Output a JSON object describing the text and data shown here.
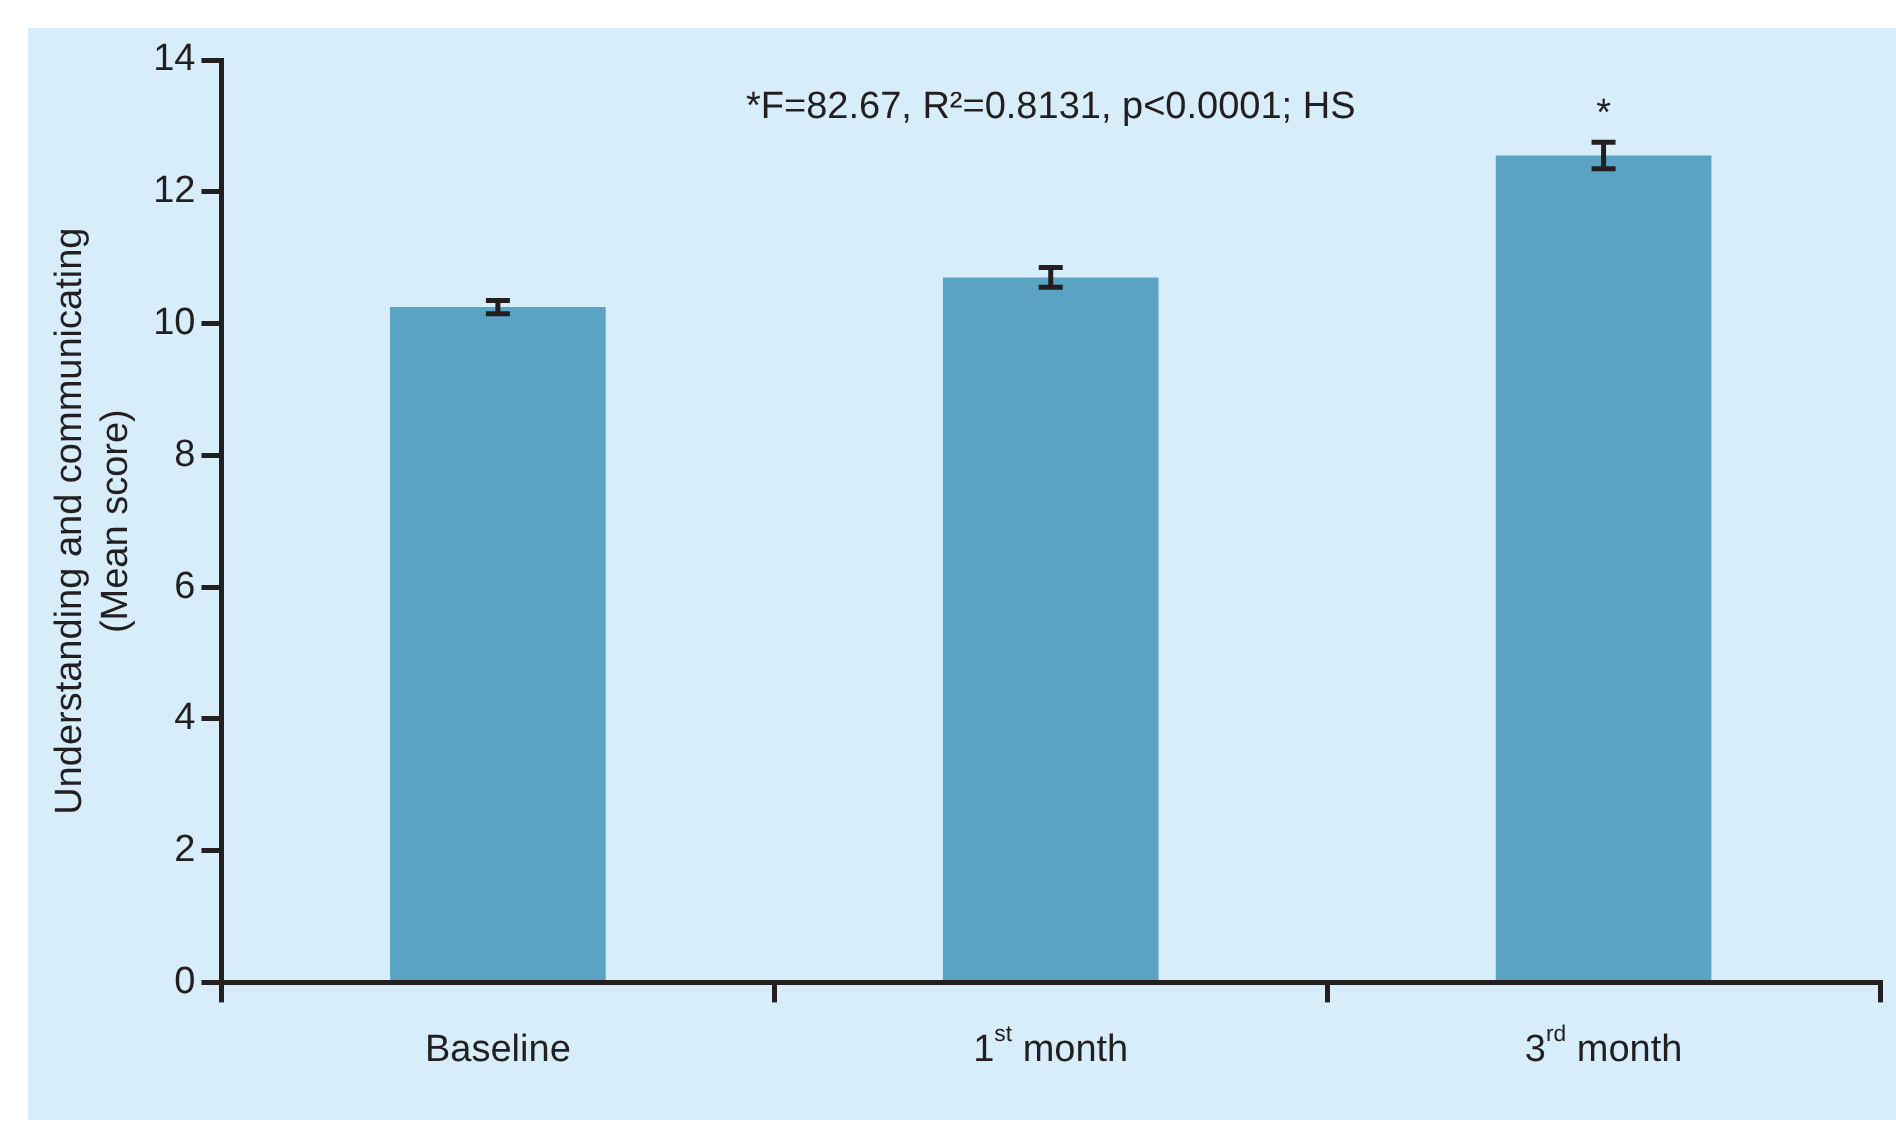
{
  "chart_data": {
    "type": "bar",
    "ylabel": "Understanding and communicating\n(Mean score)",
    "categories": [
      "Baseline",
      "1$^{st}$ month",
      "3$^{rd}$ month"
    ],
    "values": [
      10.25,
      10.7,
      12.55
    ],
    "errors": [
      0.1,
      0.15,
      0.2
    ],
    "color": "#5aa3c3",
    "ylim": [
      0,
      14
    ],
    "yticks": [
      0,
      2,
      4,
      6,
      8,
      10,
      12,
      14
    ],
    "grid": false,
    "legend": false,
    "annotations": [
      "*F=82.67, R²=0.8131, p<0.0001; HS",
      "*"
    ]
  }
}
